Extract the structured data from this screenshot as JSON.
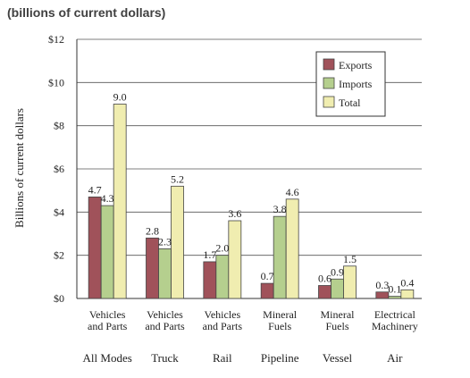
{
  "heading": "(billions of current dollars)",
  "chart_data": {
    "type": "bar",
    "ylabel": "Billions of current dollars",
    "ylim": [
      0,
      12
    ],
    "yticks": [
      "$0",
      "$2",
      "$4",
      "$6",
      "$8",
      "$10",
      "$12"
    ],
    "grid": true,
    "legend_position": "top-right",
    "categories": [
      {
        "line1": "Vehicles",
        "line2": "and Parts",
        "mode": "All Modes"
      },
      {
        "line1": "Vehicles",
        "line2": "and Parts",
        "mode": "Truck"
      },
      {
        "line1": "Vehicles",
        "line2": "and Parts",
        "mode": "Rail"
      },
      {
        "line1": "Mineral",
        "line2": "Fuels",
        "mode": "Pipeline"
      },
      {
        "line1": "Mineral",
        "line2": "Fuels",
        "mode": "Vessel"
      },
      {
        "line1": "Electrical",
        "line2": "Machinery",
        "mode": "Air"
      }
    ],
    "series": [
      {
        "name": "Exports",
        "color": "#a0525a",
        "values": [
          4.7,
          2.8,
          1.7,
          0.7,
          0.6,
          0.3
        ],
        "labels": [
          "4.7",
          "2.8",
          "1.7",
          "0.7",
          "0.6",
          "0.3"
        ]
      },
      {
        "name": "Imports",
        "color": "#b5cf8e",
        "values": [
          4.3,
          2.3,
          2.0,
          3.8,
          0.9,
          0.1
        ],
        "labels": [
          "4.3",
          "2.3",
          "2.0",
          "3.8",
          "0.9",
          "0.1"
        ]
      },
      {
        "name": "Total",
        "color": "#f0edb0",
        "values": [
          9.0,
          5.2,
          3.6,
          4.6,
          1.5,
          0.4
        ],
        "labels": [
          "9.0",
          "5.2",
          "3.6",
          "4.6",
          "1.5",
          "0.4"
        ]
      }
    ]
  }
}
